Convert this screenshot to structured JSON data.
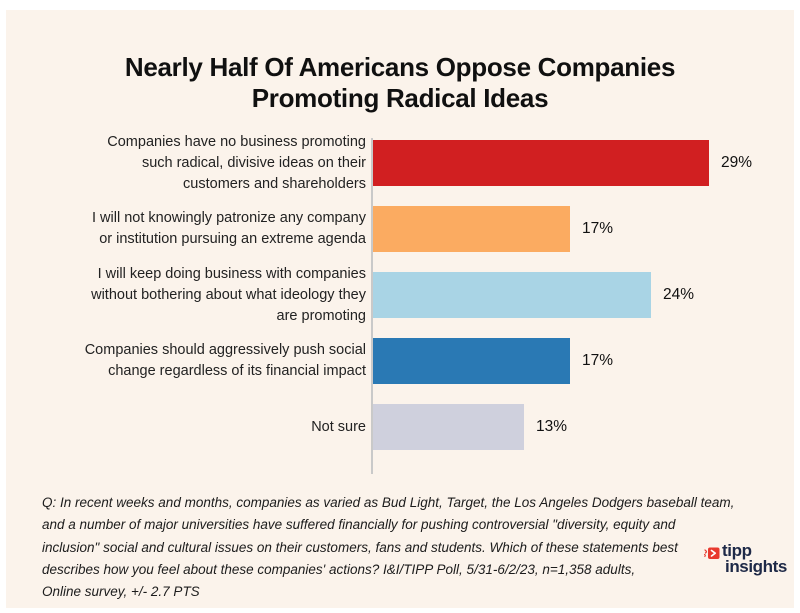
{
  "header": {
    "title_line1": "Nearly Half Of Americans Oppose Companies",
    "title_line2": "Promoting Radical Ideas"
  },
  "chart_data": {
    "type": "bar",
    "orientation": "horizontal",
    "title": "Nearly Half Of Americans Oppose Companies Promoting Radical Ideas",
    "categories": [
      "Companies have no business promoting\nsuch radical, divisive ideas on their\ncustomers and shareholders",
      "I will not knowingly patronize any company\nor institution pursuing an extreme agenda",
      "I will keep doing business with companies\nwithout bothering about what ideology they\nare promoting",
      "Companies should aggressively push social\nchange regardless of its financial impact",
      "Not sure"
    ],
    "values": [
      29,
      17,
      24,
      17,
      13
    ],
    "unit": "%",
    "bar_colors": [
      "#d11f21",
      "#fbab61",
      "#a9d4e5",
      "#2a79b4",
      "#cfd0dd"
    ],
    "xlim": [
      0,
      32
    ],
    "value_labels": true,
    "grid": false,
    "legend": false
  },
  "footnote": {
    "lines": [
      "Q:  In recent weeks and months, companies as varied as Bud Light, Target, the Los Angeles Dodgers baseball team,",
      "and a number of major universities have suffered financially for pushing controversial \"diversity, equity and",
      "inclusion\" social and cultural issues on their customers, fans and students. Which of these statements best",
      "describes how you feel about these companies' actions? I&I/TIPP Poll, 5/31-6/2/23, n=1,358 adults,",
      "Online survey, +/- 2.7 PTS"
    ]
  },
  "logo": {
    "line1": "tipp",
    "line2": "insights",
    "icon": "red-forward-arrow"
  },
  "colors": {
    "background": "#fbf3eb",
    "page_border": "#ffffff",
    "axis": "#c9c9c9",
    "text": "#1c1c1c",
    "logo_navy": "#1e2947",
    "logo_red": "#e8392e"
  }
}
